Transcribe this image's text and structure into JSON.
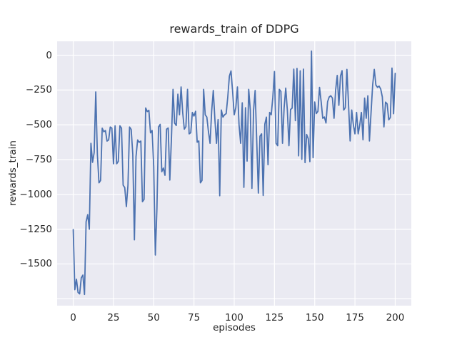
{
  "figure": {
    "background": "#ffffff"
  },
  "chart_data": {
    "type": "line",
    "title": "rewards_train of DDPG",
    "xlabel": "episodes",
    "ylabel": "rewards_train",
    "x_start": 0,
    "x_step": 1,
    "xlim": [
      -10,
      210
    ],
    "ylim": [
      -1800,
      100
    ],
    "xticks": [
      0,
      25,
      50,
      75,
      100,
      125,
      150,
      175,
      200
    ],
    "yticks": [
      0,
      -250,
      -500,
      -750,
      -1000,
      -1250,
      -1500
    ],
    "ygrid_extra": [
      -1750
    ],
    "grid": true,
    "legend_position": "none",
    "styles": {
      "plot_bg": "#EAEAF2",
      "grid_color": "#FFFFFF",
      "text_color": "#262626",
      "line_color": "#4C72B0",
      "line_width": 1.8
    },
    "series": [
      {
        "name": "rewards_train",
        "color": "#4C72B0",
        "values": [
          -1253,
          -1685,
          -1610,
          -1705,
          -1715,
          -1600,
          -1580,
          -1719,
          -1197,
          -1146,
          -1250,
          -633,
          -770,
          -700,
          -264,
          -712,
          -917,
          -900,
          -524,
          -550,
          -541,
          -617,
          -609,
          -516,
          -524,
          -780,
          -507,
          -780,
          -763,
          -507,
          -524,
          -934,
          -951,
          -1088,
          -934,
          -516,
          -533,
          -712,
          -1327,
          -729,
          -609,
          -626,
          -617,
          -1053,
          -1036,
          -379,
          -405,
          -396,
          -558,
          -541,
          -800,
          -1436,
          -1100,
          -515,
          -497,
          -837,
          -811,
          -863,
          -531,
          -523,
          -897,
          -600,
          -245,
          -488,
          -505,
          -280,
          -428,
          -228,
          -411,
          -531,
          -513,
          -245,
          -565,
          -557,
          -411,
          -437,
          -403,
          -625,
          -616,
          -917,
          -900,
          -245,
          -428,
          -445,
          -550,
          -633,
          -400,
          -253,
          -462,
          -633,
          -462,
          -1010,
          -394,
          -445,
          -428,
          -420,
          -300,
          -150,
          -113,
          -260,
          -428,
          -377,
          -228,
          -500,
          -633,
          -342,
          -950,
          -377,
          -761,
          -245,
          -394,
          -957,
          -400,
          -253,
          -620,
          -991,
          -582,
          -565,
          -1008,
          -496,
          -445,
          -787,
          -411,
          -428,
          -300,
          -117,
          -633,
          -650,
          -245,
          -260,
          -633,
          -377,
          -236,
          -394,
          -650,
          -390,
          -380,
          -100,
          -470,
          -95,
          -723,
          -112,
          -748,
          -100,
          -772,
          -570,
          -600,
          -765,
          30,
          -736,
          -336,
          -419,
          -403,
          -231,
          -334,
          -453,
          -444,
          -487,
          -334,
          -300,
          -291,
          -308,
          -453,
          -250,
          -145,
          -360,
          -150,
          -111,
          -394,
          -377,
          -102,
          -350,
          -616,
          -394,
          -500,
          -565,
          -411,
          -565,
          -500,
          -411,
          -608,
          -308,
          -453,
          -291,
          -616,
          -411,
          -214,
          -102,
          -214,
          -231,
          -222,
          -243,
          -300,
          -515,
          -337,
          -350,
          -464,
          -447,
          -92,
          -420,
          -130
        ]
      }
    ]
  }
}
